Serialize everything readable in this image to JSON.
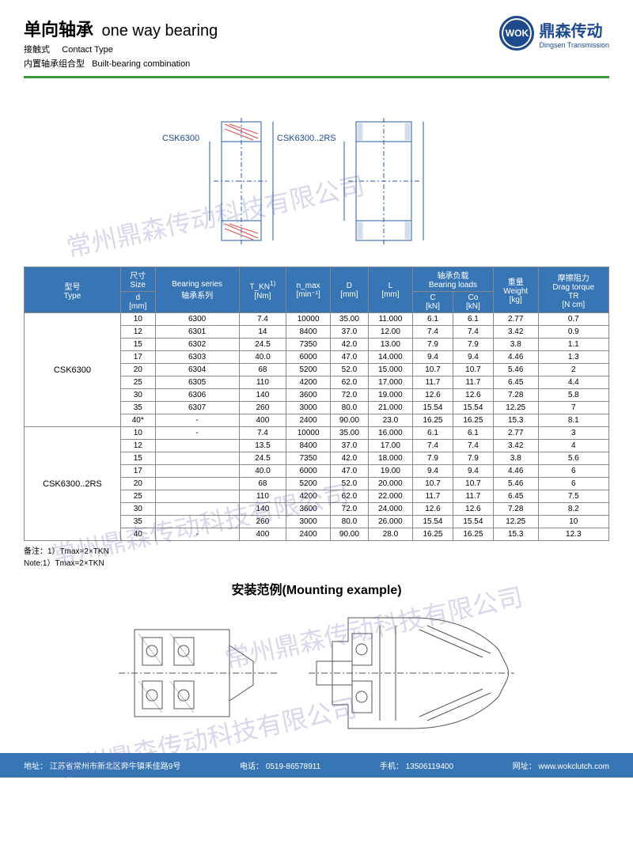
{
  "header": {
    "title_cn": "单向轴承",
    "title_en": "one way bearing",
    "sub1_cn": "接触式",
    "sub1_en": "Contact Type",
    "sub2_cn": "内置轴承组合型",
    "sub2_en": "Built-bearing combination"
  },
  "logo": {
    "badge": "WOK",
    "cn": "鼎森传动",
    "en": "Dingsen Transmission"
  },
  "diagram": {
    "label1": "CSK6300",
    "label2": "CSK6300..2RS",
    "colors": {
      "line": "#2a5aa5",
      "hatch": "#d94f4f"
    }
  },
  "watermark": "常州鼎森传动科技有限公司",
  "table": {
    "header_bg": "#3875b5",
    "header_color": "#ffffff",
    "border_color": "#888888",
    "columns": {
      "type_cn": "型号",
      "type_en": "Type",
      "size_cn": "尺寸",
      "size_en": "Size",
      "size_unit": "d",
      "size_mm": "[mm]",
      "series_cn": "Bearing series",
      "series_cn2": "轴承系列",
      "tkn": "T_KN",
      "tkn_sup": "1)",
      "tkn_unit": "[Nm]",
      "nmax": "n_max",
      "nmax_unit": "[min⁻¹]",
      "D": "D",
      "D_unit": "[mm]",
      "L": "L",
      "L_unit": "[mm]",
      "loads_cn": "轴承负载",
      "loads_en": "Bearing loads",
      "C": "C",
      "C_unit": "[kN]",
      "Co": "Co",
      "Co_unit": "[kN]",
      "weight_cn": "重量",
      "weight_en": "Weight",
      "weight_unit": "[kg]",
      "drag_cn": "摩擦阻力",
      "drag_en": "Drag torque",
      "drag_sub": "TR",
      "drag_unit": "[N cm]"
    },
    "groups": [
      {
        "type": "CSK6300",
        "rows": [
          {
            "d": "10",
            "series": "6300",
            "tkn": "7.4",
            "nmax": "10000",
            "D": "35.00",
            "L": "11.000",
            "C": "6.1",
            "Co": "6.1",
            "kg": "2.77",
            "tr": "0.7"
          },
          {
            "d": "12",
            "series": "6301",
            "tkn": "14",
            "nmax": "8400",
            "D": "37.0",
            "L": "12.00",
            "C": "7.4",
            "Co": "7.4",
            "kg": "3.42",
            "tr": "0.9"
          },
          {
            "d": "15",
            "series": "6302",
            "tkn": "24.5",
            "nmax": "7350",
            "D": "42.0",
            "L": "13.00",
            "C": "7.9",
            "Co": "7.9",
            "kg": "3.8",
            "tr": "1.1"
          },
          {
            "d": "17",
            "series": "6303",
            "tkn": "40.0",
            "nmax": "6000",
            "D": "47.0",
            "L": "14.000",
            "C": "9.4",
            "Co": "9.4",
            "kg": "4.46",
            "tr": "1.3"
          },
          {
            "d": "20",
            "series": "6304",
            "tkn": "68",
            "nmax": "5200",
            "D": "52.0",
            "L": "15.000",
            "C": "10.7",
            "Co": "10.7",
            "kg": "5.46",
            "tr": "2"
          },
          {
            "d": "25",
            "series": "6305",
            "tkn": "110",
            "nmax": "4200",
            "D": "62.0",
            "L": "17.000",
            "C": "11.7",
            "Co": "11.7",
            "kg": "6.45",
            "tr": "4.4"
          },
          {
            "d": "30",
            "series": "6306",
            "tkn": "140",
            "nmax": "3600",
            "D": "72.0",
            "L": "19.000",
            "C": "12.6",
            "Co": "12.6",
            "kg": "7.28",
            "tr": "5.8"
          },
          {
            "d": "35",
            "series": "6307",
            "tkn": "260",
            "nmax": "3000",
            "D": "80.0",
            "L": "21.000",
            "C": "15.54",
            "Co": "15.54",
            "kg": "12.25",
            "tr": "7"
          },
          {
            "d": "40*",
            "series": "-",
            "tkn": "400",
            "nmax": "2400",
            "D": "90.00",
            "L": "23.0",
            "C": "16.25",
            "Co": "16.25",
            "kg": "15.3",
            "tr": "8.1"
          }
        ]
      },
      {
        "type": "CSK6300..2RS",
        "rows": [
          {
            "d": "10",
            "series": "-",
            "tkn": "7.4",
            "nmax": "10000",
            "D": "35.00",
            "L": "16.000",
            "C": "6.1",
            "Co": "6.1",
            "kg": "2.77",
            "tr": "3"
          },
          {
            "d": "12",
            "series": "",
            "tkn": "13.5",
            "nmax": "8400",
            "D": "37.0",
            "L": "17.00",
            "C": "7.4",
            "Co": "7.4",
            "kg": "3.42",
            "tr": "4"
          },
          {
            "d": "15",
            "series": "",
            "tkn": "24.5",
            "nmax": "7350",
            "D": "42.0",
            "L": "18.000",
            "C": "7.9",
            "Co": "7.9",
            "kg": "3.8",
            "tr": "5.6"
          },
          {
            "d": "17",
            "series": "",
            "tkn": "40.0",
            "nmax": "6000",
            "D": "47.0",
            "L": "19.00",
            "C": "9.4",
            "Co": "9.4",
            "kg": "4.46",
            "tr": "6"
          },
          {
            "d": "20",
            "series": "",
            "tkn": "68",
            "nmax": "5200",
            "D": "52.0",
            "L": "20.000",
            "C": "10.7",
            "Co": "10.7",
            "kg": "5.46",
            "tr": "6"
          },
          {
            "d": "25",
            "series": "",
            "tkn": "110",
            "nmax": "4200",
            "D": "62.0",
            "L": "22.000",
            "C": "11.7",
            "Co": "11.7",
            "kg": "6.45",
            "tr": "7.5"
          },
          {
            "d": "30",
            "series": "",
            "tkn": "140",
            "nmax": "3600",
            "D": "72.0",
            "L": "24.000",
            "C": "12.6",
            "Co": "12.6",
            "kg": "7.28",
            "tr": "8.2"
          },
          {
            "d": "35",
            "series": "",
            "tkn": "260",
            "nmax": "3000",
            "D": "80.0",
            "L": "26.000",
            "C": "15.54",
            "Co": "15.54",
            "kg": "12.25",
            "tr": "10"
          },
          {
            "d": "40",
            "series": "-",
            "tkn": "400",
            "nmax": "2400",
            "D": "90.00",
            "L": "28.0",
            "C": "16.25",
            "Co": "16.25",
            "kg": "15.3",
            "tr": "12.3"
          }
        ]
      }
    ]
  },
  "note": {
    "cn": "备注：1）Tmax=2×TKN",
    "en": "Note:1）Tmax=2×TKN"
  },
  "mount_title": "安装范例(Mounting example)",
  "footer": {
    "addr_label": "地址：",
    "addr": "江苏省常州市新北区奔牛镇禾佳路9号",
    "tel_label": "电话：",
    "tel": "0519-86578911",
    "mobile_label": "手机：",
    "mobile": "13506119400",
    "web_label": "网址：",
    "web": "www.wokclutch.com"
  }
}
